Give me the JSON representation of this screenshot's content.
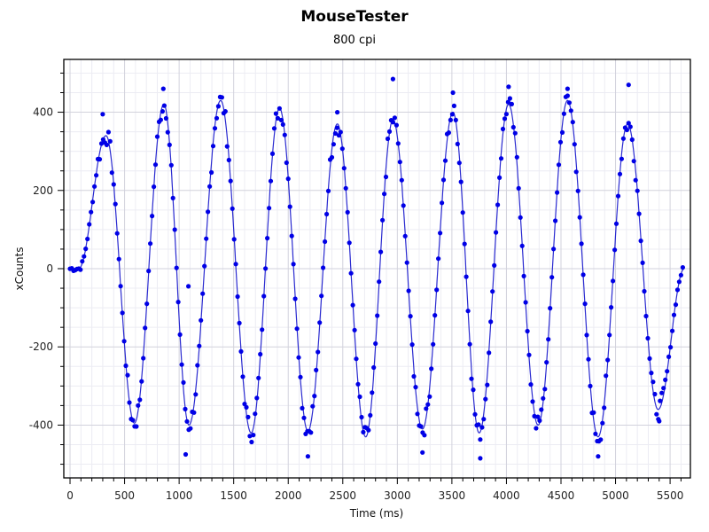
{
  "window": {
    "title": "MouseTester",
    "subtitle": "800 cpi"
  },
  "colors": {
    "series": "#0000e6",
    "line": "#2a2ad0",
    "grid_major": "#d2d2dc",
    "grid_minor": "#ececf3",
    "axis": "#000000"
  },
  "chart_data": {
    "type": "scatter",
    "title": "MouseTester",
    "subtitle": "800 cpi",
    "xlabel": "Time (ms)",
    "ylabel": "xCounts",
    "xlim": [
      -57,
      5686
    ],
    "ylim": [
      -535,
      535
    ],
    "x_ticks": [
      0,
      500,
      1000,
      1500,
      2000,
      2500,
      3000,
      3500,
      4000,
      4500,
      5000,
      5500
    ],
    "x_tick_labels": [
      "0",
      "500",
      "1000",
      "1500",
      "2000",
      "2500",
      "3000",
      "3500",
      "4000",
      "4500",
      "5000",
      "5500"
    ],
    "x_minor_step": 100,
    "y_ticks": [
      -400,
      -200,
      0,
      200,
      400
    ],
    "y_tick_labels": [
      "-400",
      "-200",
      "0",
      "200",
      "400"
    ],
    "y_minor_step": 50,
    "grid": true,
    "legend": "none",
    "sample_interval_ms": 16,
    "series": [
      {
        "name": "xCounts",
        "style": "points + smoothed line",
        "keyframes_t": [
          0,
          80,
          330,
          590,
          860,
          1090,
          1380,
          1660,
          1920,
          2180,
          2450,
          2710,
          2960,
          3230,
          3510,
          3750,
          4020,
          4290,
          4560,
          4840,
          5110,
          5390,
          5630
        ],
        "keyframes_v": [
          0,
          0,
          340,
          -395,
          420,
          -400,
          430,
          -420,
          410,
          -415,
          370,
          -430,
          380,
          -410,
          400,
          -420,
          420,
          -400,
          430,
          -430,
          370,
          -360,
          0
        ]
      }
    ],
    "outliers": [
      {
        "t": 300,
        "v": 395
      },
      {
        "t": 855,
        "v": 460
      },
      {
        "t": 1060,
        "v": -475
      },
      {
        "t": 1085,
        "v": -45
      },
      {
        "t": 2180,
        "v": -480
      },
      {
        "t": 2450,
        "v": 400
      },
      {
        "t": 2960,
        "v": 485
      },
      {
        "t": 3230,
        "v": -470
      },
      {
        "t": 3510,
        "v": 450
      },
      {
        "t": 3760,
        "v": -485
      },
      {
        "t": 4020,
        "v": 465
      },
      {
        "t": 4560,
        "v": 460
      },
      {
        "t": 4840,
        "v": -480
      },
      {
        "t": 5120,
        "v": 470
      },
      {
        "t": 5400,
        "v": -390
      }
    ]
  }
}
